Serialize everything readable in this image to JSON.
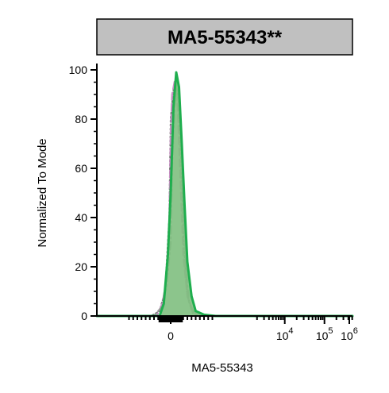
{
  "chart_data": {
    "type": "area",
    "title": "MA5-55343**",
    "xlabel": "MA5-55343",
    "ylabel": "Normalized To Mode",
    "ylim": [
      0,
      100
    ],
    "y_ticks": [
      0,
      20,
      40,
      60,
      80,
      100
    ],
    "x_scale": "biexponential",
    "x_tick_labels": [
      {
        "base": "0",
        "exp": ""
      },
      {
        "base": "10",
        "exp": "4"
      },
      {
        "base": "10",
        "exp": "5"
      },
      {
        "base": "10",
        "exp": "6"
      }
    ],
    "grid": false,
    "legend": "none",
    "series": [
      {
        "style": "dotted",
        "color": "#7a7a7a",
        "fill": "none",
        "x": [
          -70,
          -40,
          -20,
          -5,
          0,
          10,
          20,
          30,
          40,
          50,
          60,
          80,
          100,
          150
        ],
        "y": [
          0,
          2,
          10,
          40,
          80,
          92,
          95,
          86,
          55,
          25,
          8,
          2,
          0,
          0
        ]
      },
      {
        "style": "dashed",
        "color": "#c98cc4",
        "fill": "none",
        "x": [
          -50,
          -30,
          -15,
          -5,
          0,
          5,
          15,
          25,
          35,
          45,
          60,
          80,
          100,
          150
        ],
        "y": [
          0,
          5,
          15,
          40,
          75,
          90,
          96,
          85,
          55,
          25,
          8,
          2,
          0,
          0
        ]
      },
      {
        "style": "dash-dot",
        "color": "#9a9a9a",
        "fill": "none",
        "x": [
          -60,
          -30,
          -15,
          0,
          5,
          15,
          25,
          35,
          45,
          55,
          65,
          80,
          100,
          150
        ],
        "y": [
          0,
          4,
          12,
          30,
          60,
          88,
          96,
          80,
          50,
          20,
          6,
          1,
          0,
          0
        ]
      },
      {
        "style": "solid",
        "color": "#1fae4e",
        "fill": "#7fbf7f",
        "x": [
          -40,
          -25,
          -10,
          0,
          10,
          20,
          30,
          40,
          50,
          60,
          75,
          90,
          120,
          180,
          400
        ],
        "y": [
          0,
          5,
          25,
          50,
          85,
          99,
          93,
          70,
          45,
          22,
          8,
          2,
          0.5,
          0,
          0
        ]
      }
    ]
  }
}
